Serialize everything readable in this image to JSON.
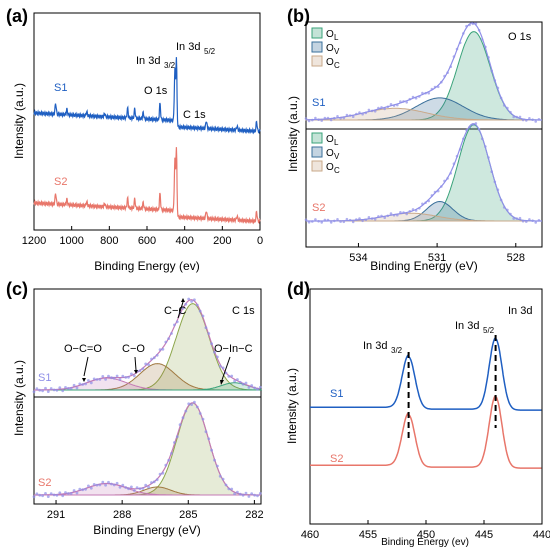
{
  "colors": {
    "s1": "#1f5fc2",
    "s2": "#e8766a",
    "fit_ol": "#3aa37a",
    "fit_ov": "#3a6f9a",
    "fit_oc": "#c9a98a",
    "data_point": "#8f8fe8",
    "envelope": "#c47ab5",
    "c1": "#8ca54a"
  },
  "chart_data": [
    {
      "panel": "(a)",
      "type": "line",
      "xlabel": "Binding Energy (ev)",
      "ylabel": "Intensity (a.u.)",
      "xlim": [
        1200,
        0
      ],
      "xticks": [
        "1200",
        "1000",
        "800",
        "600",
        "400",
        "200",
        "0"
      ],
      "series": [
        {
          "name": "S1"
        },
        {
          "name": "S2"
        }
      ],
      "peak_labels": [
        {
          "main": "In 3d",
          "sub": "3/2",
          "x": 452
        },
        {
          "main": "In 3d",
          "sub": "5/2",
          "x": 444
        },
        {
          "main": "O 1s",
          "sub": "",
          "x": 531
        },
        {
          "main": "C 1s",
          "sub": "",
          "x": 285
        }
      ],
      "peaks_energy": [
        1085,
        1025,
        920,
        825,
        703,
        665,
        620,
        531,
        452,
        444,
        285,
        122,
        18
      ]
    },
    {
      "panel": "(b)",
      "type": "line",
      "title": "O 1s",
      "xlabel": "Binding Energy (eV)",
      "ylabel": "Intensity (a.u.)",
      "xlim": [
        536,
        527
      ],
      "xticks": [
        "534",
        "531",
        "528"
      ],
      "legend": [
        {
          "main": "O",
          "sub": "L"
        },
        {
          "main": "O",
          "sub": "V"
        },
        {
          "main": "O",
          "sub": "C"
        }
      ],
      "series": [
        {
          "name": "S1"
        },
        {
          "name": "S2"
        }
      ],
      "components": {
        "S1": [
          {
            "name": "OL",
            "center": 529.6,
            "height": 0.68,
            "width": 0.62
          },
          {
            "name": "OV",
            "center": 530.9,
            "height": 0.17,
            "width": 0.9
          },
          {
            "name": "OC",
            "center": 532.6,
            "height": 0.09,
            "width": 1.2
          }
        ],
        "S2": [
          {
            "name": "OL",
            "center": 529.6,
            "height": 0.74,
            "width": 0.6
          },
          {
            "name": "OV",
            "center": 530.9,
            "height": 0.15,
            "width": 0.5
          },
          {
            "name": "OC",
            "center": 532.0,
            "height": 0.06,
            "width": 1.0
          }
        ]
      }
    },
    {
      "panel": "(c)",
      "type": "line",
      "title": "C 1s",
      "xlabel": "Binding Energy (eV)",
      "ylabel": "Intensity (a.u.)",
      "xlim": [
        292,
        281.7
      ],
      "xticks": [
        "291",
        "288",
        "285",
        "282"
      ],
      "series": [
        {
          "name": "S1"
        },
        {
          "name": "S2"
        }
      ],
      "annotations": [
        "O−C=O",
        "C−O",
        "C−C",
        "O−In−C"
      ],
      "components": {
        "S1": [
          {
            "name": "C-C",
            "center": 284.8,
            "height": 0.72,
            "width": 0.75
          },
          {
            "name": "C-O",
            "center": 286.4,
            "height": 0.22,
            "width": 0.8
          },
          {
            "name": "O-C=O",
            "center": 288.7,
            "height": 0.1,
            "width": 0.9
          },
          {
            "name": "O-In-C",
            "center": 282.9,
            "height": 0.06,
            "width": 0.6
          }
        ],
        "S2": [
          {
            "name": "C-C",
            "center": 284.8,
            "height": 0.8,
            "width": 0.72
          },
          {
            "name": "C-O",
            "center": 286.4,
            "height": 0.07,
            "width": 0.6
          },
          {
            "name": "O-C=O",
            "center": 288.7,
            "height": 0.1,
            "width": 0.9
          }
        ]
      }
    },
    {
      "panel": "(d)",
      "type": "line",
      "title": "In 3d",
      "xlabel": "Binding Energy (ev)",
      "ylabel": "Intensity (a.u.)",
      "xlim": [
        460,
        440
      ],
      "xticks": [
        "460",
        "455",
        "450",
        "445",
        "440"
      ],
      "series": [
        {
          "name": "S1"
        },
        {
          "name": "S2"
        }
      ],
      "peak_labels": [
        {
          "main": "In 3d",
          "sub": "3/2",
          "x": 451.5
        },
        {
          "main": "In 3d",
          "sub": "5/2",
          "x": 444
        }
      ]
    }
  ]
}
